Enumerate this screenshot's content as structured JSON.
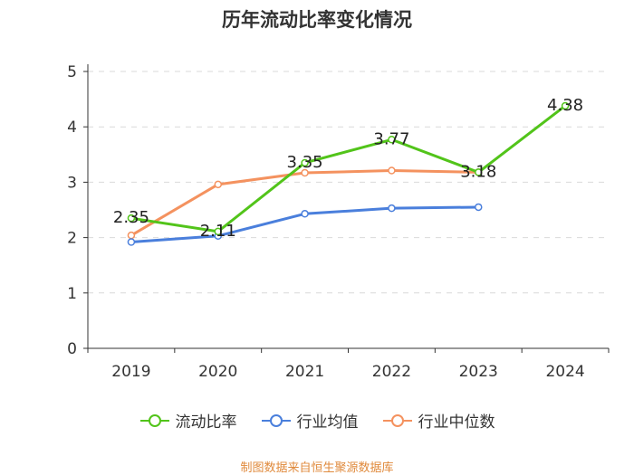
{
  "chart_data": {
    "type": "line",
    "title": "历年流动比率变化情况",
    "categories": [
      "2019",
      "2020",
      "2021",
      "2022",
      "2023",
      "2024"
    ],
    "ylim": [
      0,
      5
    ],
    "yticks": [
      0,
      1,
      2,
      3,
      4,
      5
    ],
    "grid": true,
    "legend_position": "bottom",
    "series": [
      {
        "name": "流动比率",
        "color": "#52c41a",
        "values": [
          2.35,
          2.11,
          3.35,
          3.77,
          3.18,
          4.38
        ],
        "labels": [
          "2.35",
          "2.11",
          "3.35",
          "3.77",
          "3.18",
          "4.38"
        ]
      },
      {
        "name": "行业均值",
        "color": "#4a7fdc",
        "values": [
          1.92,
          2.03,
          2.43,
          2.53,
          2.55,
          null
        ]
      },
      {
        "name": "行业中位数",
        "color": "#f4925f",
        "values": [
          2.04,
          2.96,
          3.17,
          3.21,
          3.18,
          null
        ]
      }
    ]
  },
  "source": "制图数据来自恒生聚源数据库"
}
